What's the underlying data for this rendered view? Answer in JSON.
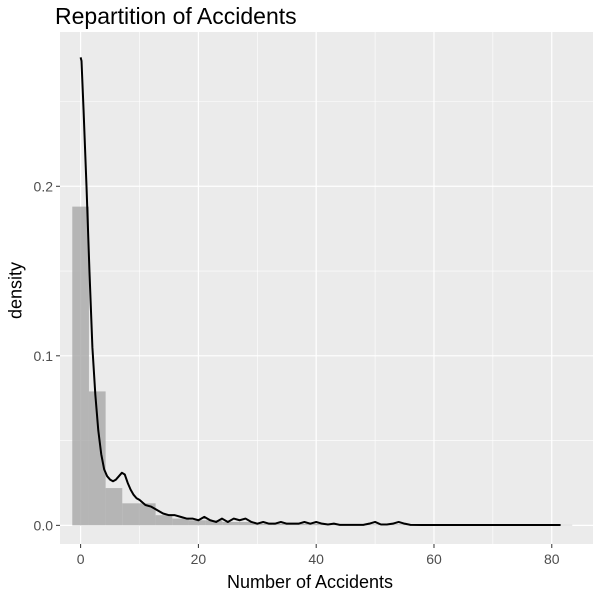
{
  "chart_data": {
    "type": "bar",
    "title": "Repartition of Accidents",
    "xlabel": "Number of Accidents",
    "ylabel": "density",
    "xlim": [
      -3.5,
      87
    ],
    "ylim": [
      -0.011,
      0.291
    ],
    "x_ticks": [
      0,
      20,
      40,
      60,
      80
    ],
    "x_tick_labels": [
      "0",
      "20",
      "40",
      "60",
      "80"
    ],
    "y_ticks": [
      0.0,
      0.1,
      0.2
    ],
    "y_tick_labels": [
      "0.0",
      "0.1",
      "0.2"
    ],
    "grid": true,
    "histogram": {
      "bin_width": 2.83,
      "bins": [
        {
          "x0": -1.415,
          "x1": 1.415,
          "density": 0.188
        },
        {
          "x0": 1.415,
          "x1": 4.245,
          "density": 0.079
        },
        {
          "x0": 4.245,
          "x1": 7.075,
          "density": 0.022
        },
        {
          "x0": 7.075,
          "x1": 9.905,
          "density": 0.013
        },
        {
          "x0": 9.905,
          "x1": 12.735,
          "density": 0.013
        },
        {
          "x0": 12.735,
          "x1": 15.565,
          "density": 0.006
        },
        {
          "x0": 15.565,
          "x1": 18.395,
          "density": 0.004
        },
        {
          "x0": 18.395,
          "x1": 21.225,
          "density": 0.003
        },
        {
          "x0": 21.225,
          "x1": 24.055,
          "density": 0.003
        },
        {
          "x0": 24.055,
          "x1": 26.885,
          "density": 0.002
        },
        {
          "x0": 26.885,
          "x1": 29.715,
          "density": 0.002
        },
        {
          "x0": 29.715,
          "x1": 32.545,
          "density": 0.001
        },
        {
          "x0": 32.545,
          "x1": 35.375,
          "density": 0.001
        },
        {
          "x0": 35.375,
          "x1": 38.205,
          "density": 0.001
        },
        {
          "x0": 38.205,
          "x1": 41.035,
          "density": 0.001
        },
        {
          "x0": 41.035,
          "x1": 43.865,
          "density": 0.0005
        },
        {
          "x0": 43.865,
          "x1": 46.695,
          "density": 0.0005
        },
        {
          "x0": 46.695,
          "x1": 49.525,
          "density": 0.0005
        },
        {
          "x0": 49.525,
          "x1": 52.355,
          "density": 0.0005
        },
        {
          "x0": 52.355,
          "x1": 55.185,
          "density": 0.0005
        },
        {
          "x0": 55.185,
          "x1": 58.015,
          "density": 0.0003
        },
        {
          "x0": 58.015,
          "x1": 60.845,
          "density": 0.0003
        },
        {
          "x0": 60.845,
          "x1": 63.675,
          "density": 0.0003
        },
        {
          "x0": 63.675,
          "x1": 66.505,
          "density": 0.0003
        },
        {
          "x0": 66.505,
          "x1": 69.335,
          "density": 0.0003
        },
        {
          "x0": 69.335,
          "x1": 72.165,
          "density": 0.0003
        },
        {
          "x0": 72.165,
          "x1": 74.995,
          "density": 0.0003
        },
        {
          "x0": 74.995,
          "x1": 77.825,
          "density": 0.0003
        },
        {
          "x0": 77.825,
          "x1": 80.655,
          "density": 0.0003
        },
        {
          "x0": 80.655,
          "x1": 83.485,
          "density": 0.0003
        }
      ]
    },
    "density_curve": {
      "x": [
        0,
        0.15,
        0.5,
        1,
        1.5,
        2,
        2.5,
        3,
        3.5,
        4,
        4.5,
        5,
        5.5,
        6,
        6.5,
        7,
        7.5,
        8,
        8.5,
        9,
        9.5,
        10,
        11,
        12,
        13,
        14,
        15,
        16,
        17,
        18,
        19,
        20,
        21,
        22,
        23,
        24,
        25,
        26,
        27,
        28,
        29,
        30,
        31,
        32,
        33,
        34,
        35,
        36,
        37,
        38,
        39,
        40,
        41,
        42,
        43,
        44,
        46,
        48,
        49,
        50,
        51,
        52,
        53,
        54,
        55,
        56,
        58,
        60,
        65,
        70,
        75,
        80,
        81.5
      ],
      "y": [
        0.276,
        0.274,
        0.245,
        0.2,
        0.15,
        0.105,
        0.077,
        0.056,
        0.042,
        0.033,
        0.029,
        0.027,
        0.026,
        0.027,
        0.029,
        0.031,
        0.03,
        0.025,
        0.021,
        0.018,
        0.016,
        0.015,
        0.012,
        0.011,
        0.009,
        0.007,
        0.006,
        0.006,
        0.005,
        0.004,
        0.004,
        0.003,
        0.005,
        0.003,
        0.002,
        0.004,
        0.002,
        0.004,
        0.003,
        0.004,
        0.002,
        0.001,
        0.002,
        0.001,
        0.001,
        0.002,
        0.001,
        0.001,
        0.001,
        0.002,
        0.001,
        0.002,
        0.001,
        0.0005,
        0.001,
        0.0003,
        0.0003,
        0.0003,
        0.001,
        0.002,
        0.0005,
        0.0005,
        0.001,
        0.002,
        0.001,
        0.0003,
        0.0002,
        0.0002,
        0.0002,
        0.0002,
        0.0002,
        0.0002,
        0.0002
      ]
    }
  },
  "colors": {
    "panel_bg": "#ebebeb",
    "grid_major": "#ffffff",
    "bar_fill": "#a8a8a8",
    "bar_opacity": 0.8,
    "curve": "#000000",
    "tick_text": "#4d4d4d",
    "tick_mark": "#333333"
  }
}
